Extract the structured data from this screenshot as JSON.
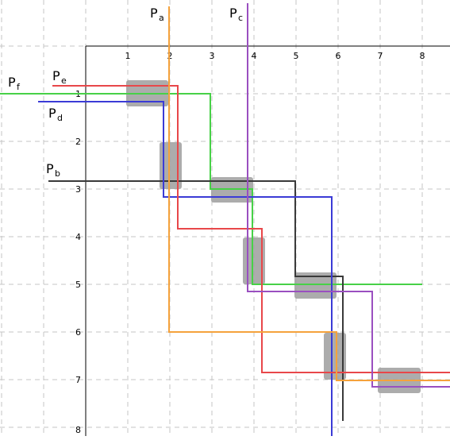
{
  "axes": {
    "x_ticks": [
      "1",
      "2",
      "3",
      "4",
      "5",
      "6",
      "7",
      "8"
    ],
    "y_ticks": [
      "1",
      "2",
      "3",
      "4",
      "5",
      "6",
      "7",
      "8"
    ],
    "grid": true
  },
  "paths": [
    {
      "id": "a",
      "label": "P",
      "sub": "a",
      "color": "#f5a23c"
    },
    {
      "id": "b",
      "label": "P",
      "sub": "b",
      "color": "#3a3a3a"
    },
    {
      "id": "c",
      "label": "P",
      "sub": "c",
      "color": "#9a4fc0"
    },
    {
      "id": "d",
      "label": "P",
      "sub": "d",
      "color": "#3b3bd6"
    },
    {
      "id": "e",
      "label": "P",
      "sub": "e",
      "color": "#e8474a"
    },
    {
      "id": "f",
      "label": "P",
      "sub": "f",
      "color": "#47d147"
    }
  ],
  "block_color": "#9e9e9e"
}
